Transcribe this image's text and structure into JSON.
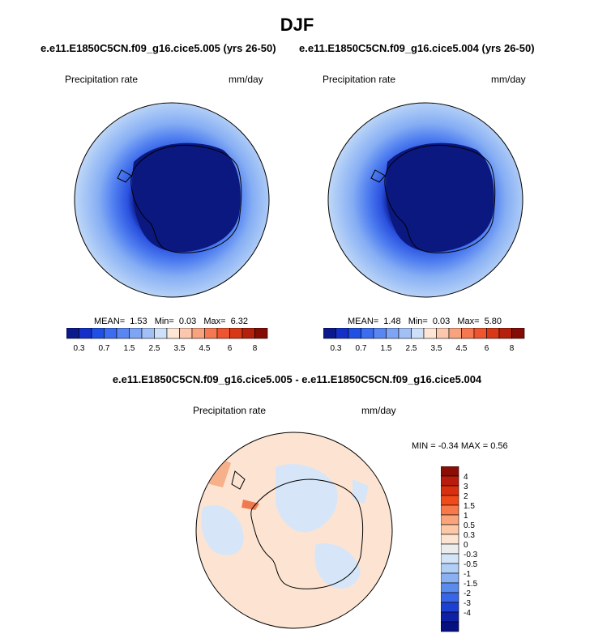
{
  "title": "DJF",
  "panels": [
    {
      "case_title": "e.e11.E1850C5CN.f09_g16.cice5.005 (yrs 26-50)",
      "field": "Precipitation rate",
      "units": "mm/day",
      "mean_label": "MEAN=",
      "mean": "1.53",
      "min_label": "Min=",
      "min": "0.03",
      "max_label": "Max=",
      "max": "6.32"
    },
    {
      "case_title": "e.e11.E1850C5CN.f09_g16.cice5.004 (yrs 26-50)",
      "field": "Precipitation rate",
      "units": "mm/day",
      "mean_label": "MEAN=",
      "mean": "1.48",
      "min_label": "Min=",
      "min": "0.03",
      "max_label": "Max=",
      "max": "5.80"
    }
  ],
  "colorbar": {
    "colors": [
      "#0a1a8c",
      "#1430c8",
      "#1f50e6",
      "#3c6cf0",
      "#5a86f2",
      "#7ea4f4",
      "#a2c0f6",
      "#cde0f8",
      "#fde6d6",
      "#fbc8ae",
      "#f8a27e",
      "#f57850",
      "#ee5430",
      "#d83818",
      "#b4200c",
      "#840c04"
    ],
    "tick_labels": [
      "0.3",
      "0.7",
      "1.5",
      "2.5",
      "3.5",
      "4.5",
      "6",
      "8"
    ]
  },
  "difference": {
    "title": "e.e11.E1850C5CN.f09_g16.cice5.005 - e.e11.E1850C5CN.f09_g16.cice5.004",
    "field": "Precipitation rate",
    "units": "mm/day",
    "minmax_label": "MIN = -0.34 MAX =  0.56",
    "colorbar_colors": [
      "#8a0e06",
      "#b81c0c",
      "#d8300e",
      "#f04a1a",
      "#f77848",
      "#faa47c",
      "#fcc8a6",
      "#fde4d2",
      "#ececec",
      "#d4e4f8",
      "#b0cef6",
      "#88b0f2",
      "#5a8cee",
      "#3a66e6",
      "#1e40d0",
      "#0e20a6",
      "#061080"
    ],
    "colorbar_labels": [
      "4",
      "3",
      "2",
      "1.5",
      "1",
      "0.5",
      "0.3",
      "0",
      "-0.3",
      "-0.5",
      "-1",
      "-1.5",
      "-2",
      "-3",
      "-4"
    ]
  }
}
